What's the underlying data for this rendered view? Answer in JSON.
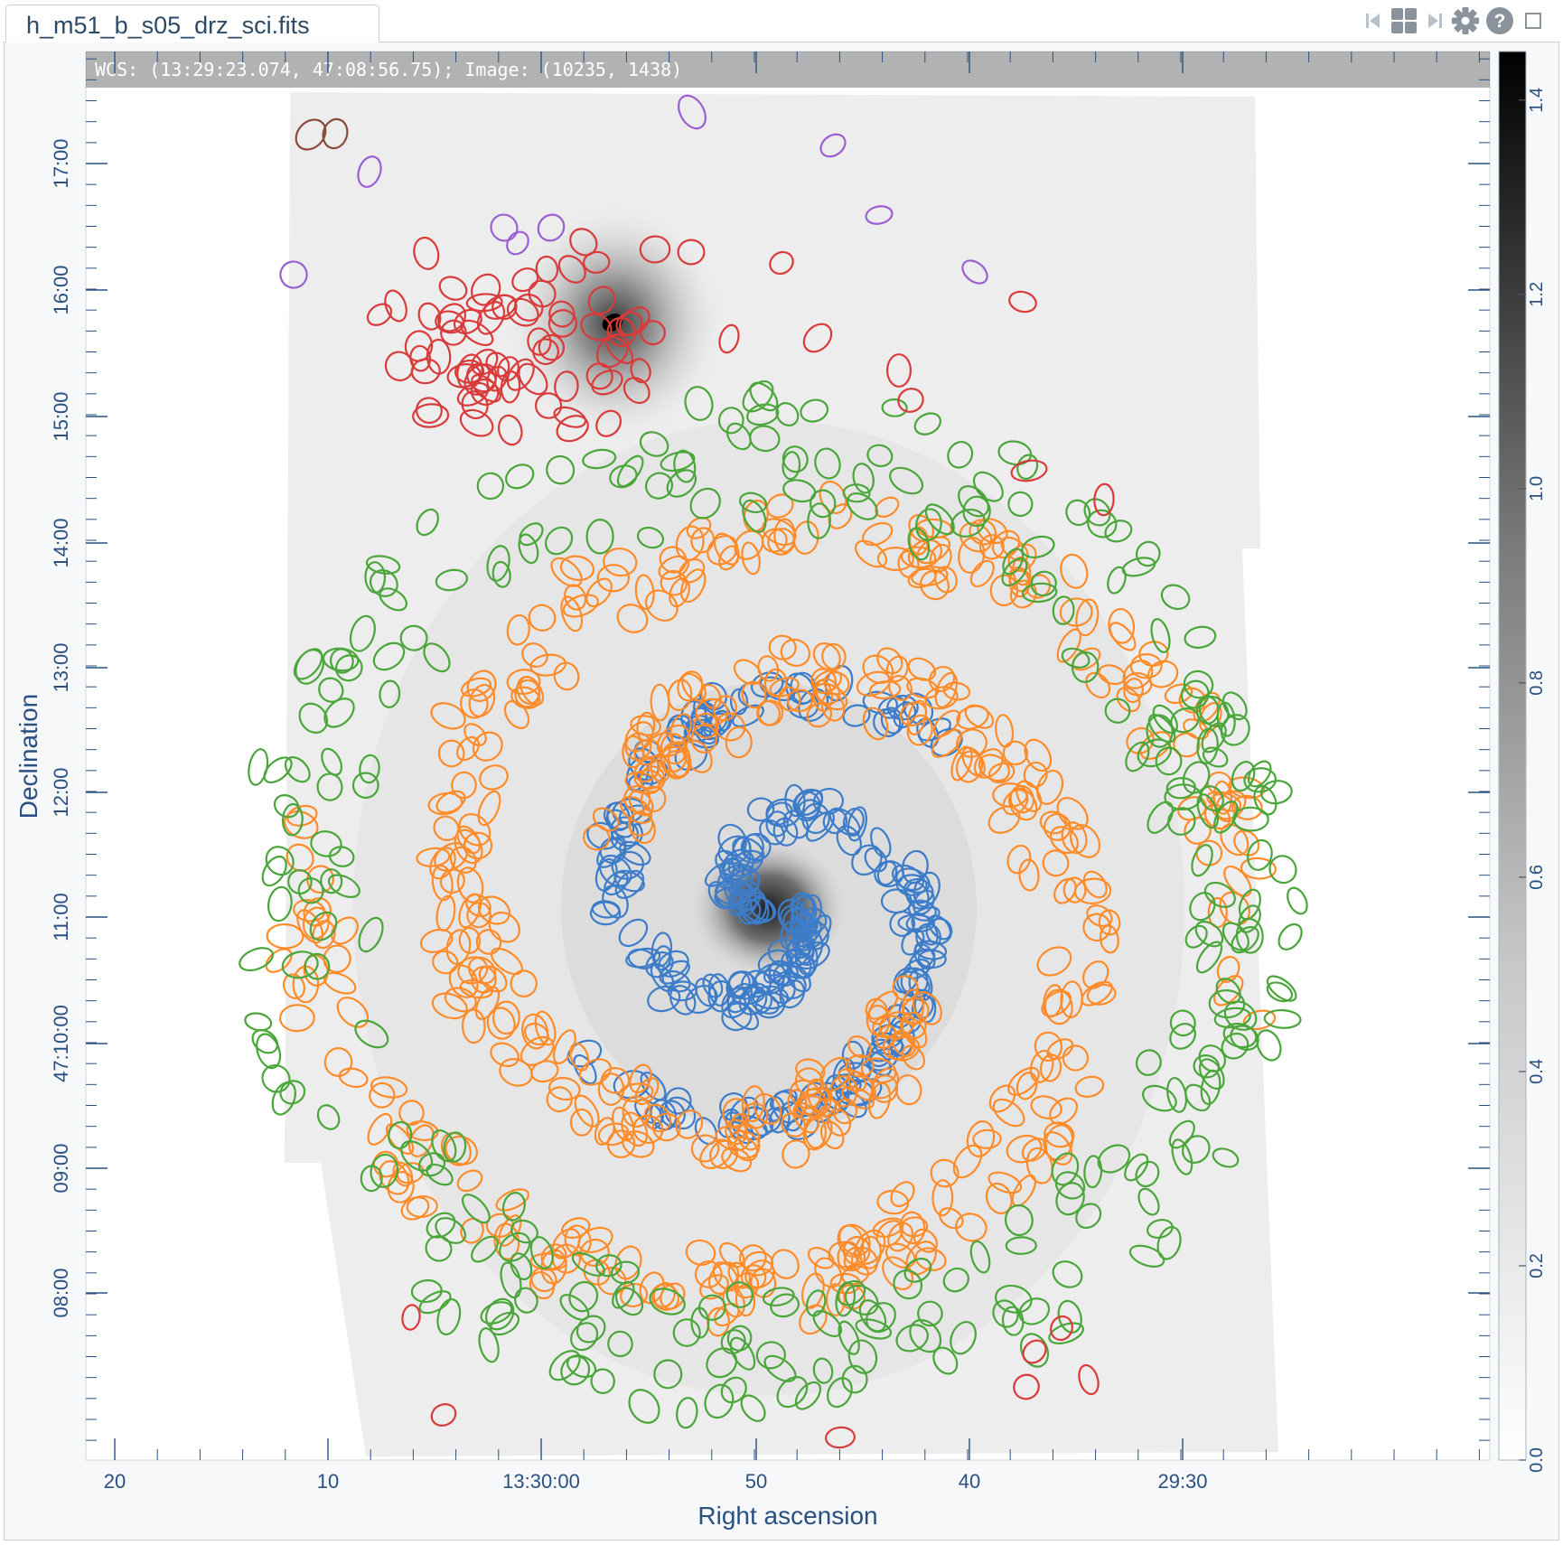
{
  "tab": {
    "title": "h_m51_b_s05_drz_sci.fits"
  },
  "toolbar": {
    "icons": [
      "skip-back-icon",
      "grid-layout-icon",
      "skip-forward-icon",
      "gear-icon",
      "help-icon",
      "maximize-icon"
    ]
  },
  "readout": {
    "text": "WCS: (13:29:23.074, 47:08:56.75); Image: (10235, 1438)"
  },
  "axes": {
    "xlabel": "Right ascension",
    "ylabel": "Declination",
    "x_ticks": [
      "20",
      "10",
      "13:30:00",
      "50",
      "40",
      "29:30"
    ],
    "y_ticks": [
      "17:00",
      "16:00",
      "15:00",
      "14:00",
      "13:00",
      "12:00",
      "11:00",
      "47:10:00",
      "09:00",
      "08:00"
    ]
  },
  "colorbar": {
    "ticks": [
      "0.0",
      "0.2",
      "0.4",
      "0.6",
      "0.8",
      "1.0",
      "1.2",
      "1.4"
    ],
    "range": [
      0.0,
      1.45
    ],
    "colormap": "gray-inverted"
  },
  "overlay": {
    "shape": "ellipse",
    "colors": {
      "nucleus": "#3d7cc9",
      "inner_arms": "#ff8c2a",
      "outer_field": "#4aa63a",
      "companion": "#d93a3a",
      "far_field": "#9b5fd1",
      "edge": "#8a4a3a"
    }
  },
  "theme": {
    "axis_color": "#2a5082",
    "panel_bg": "#f6f8fa",
    "border": "#c8d1d9"
  }
}
